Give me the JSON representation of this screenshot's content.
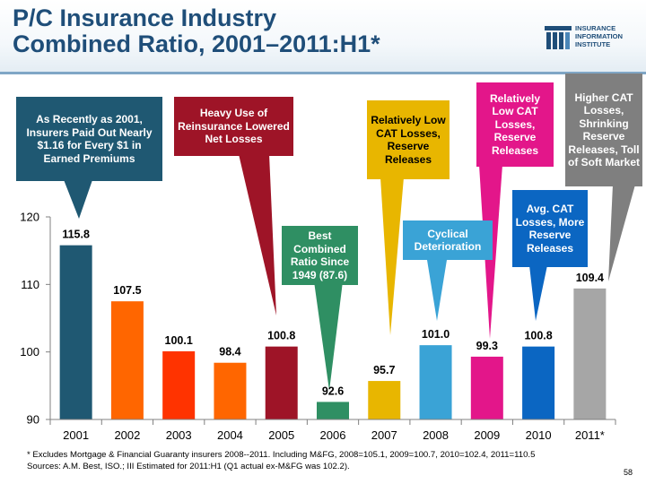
{
  "header": {
    "title_line1": "P/C Insurance Industry",
    "title_line2": "Combined Ratio, 2001–2011:H1*",
    "logo_lines": [
      "INSURANCE",
      "INFORMATION",
      "INSTITUTE"
    ]
  },
  "colors": {
    "title": "#1f4e79",
    "callout_2001": "#1f5872",
    "callout_2005": "#9e1427",
    "callout_2006": "#2f8f63",
    "callout_2007": "#e8b600",
    "callout_2008": "#3aa3d6",
    "callout_2009": "#e3168a",
    "callout_2010": "#0b66c2",
    "callout_2011": "#7f7f7f"
  },
  "chart_data": {
    "type": "bar",
    "categories": [
      "2001",
      "2002",
      "2003",
      "2004",
      "2005",
      "2006",
      "2007",
      "2008",
      "2009",
      "2010",
      "2011*"
    ],
    "values": [
      115.8,
      107.5,
      100.1,
      98.4,
      100.8,
      92.6,
      95.7,
      101.0,
      99.3,
      100.8,
      109.4
    ],
    "value_labels": [
      "115.8",
      "107.5",
      "100.1",
      "98.4",
      "100.8",
      "92.6",
      "95.7",
      "101.0",
      "99.3",
      "100.8",
      "109.4"
    ],
    "bar_colors": [
      "#1f5872",
      "#ff6600",
      "#ff3300",
      "#ff6600",
      "#9e1427",
      "#2f8f63",
      "#e8b600",
      "#3aa3d6",
      "#e3168a",
      "#0b66c2",
      "#a6a6a6"
    ],
    "ylim": [
      90,
      120
    ],
    "yticks": [
      90,
      100,
      110,
      120
    ],
    "ytick_labels": [
      "90",
      "100",
      "110",
      "120"
    ],
    "grid": false,
    "legend": "none"
  },
  "callouts": {
    "c2001": "As Recently as 2001, Insurers Paid Out Nearly $1.16 for Every $1 in Earned Premiums",
    "c2005": "Heavy Use of Reinsurance Lowered Net Losses",
    "c2006": "Best Combined Ratio Since 1949 (87.6)",
    "c2007": "Relatively Low CAT Losses, Reserve Releases",
    "c2008": "Cyclical Deterioration",
    "c2009": "Relatively Low CAT Losses, Reserve Releases",
    "c2010": "Avg. CAT Losses, More Reserve Releases",
    "c2011": "Higher CAT Losses, Shrinking Reserve Releases, Toll of Soft Market"
  },
  "footnote": {
    "line1": "* Excludes Mortgage & Financial Guaranty insurers 2008--2011. Including M&FG, 2008=105.1, 2009=100.7, 2010=102.4, 2011=110.5",
    "line2": "Sources: A.M. Best, ISO.;  III Estimated for 2011:H1 (Q1 actual ex-M&FG was 102.2)."
  },
  "page_number": "58"
}
